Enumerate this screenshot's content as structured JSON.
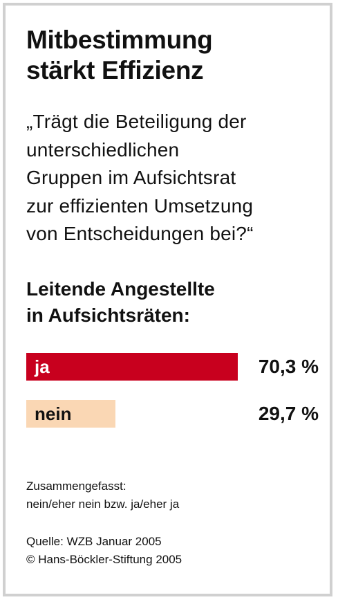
{
  "title_line1": "Mitbestimmung",
  "title_line2": "stärkt Effizienz",
  "question_lines": [
    "„Trägt die Beteiligung der",
    "unterschiedlichen",
    "Gruppen im Aufsichtsrat",
    "zur effizienten Umsetzung",
    "von Entscheidungen bei?“"
  ],
  "subtitle_line1": "Leitende Angestellte",
  "subtitle_line2": "in Aufsichtsräten:",
  "note_line1": "Zusammengefasst:",
  "note_line2": "nein/eher nein bzw. ja/eher ja",
  "source_line1": "Quelle: WZB Januar 2005",
  "source_line2": "© Hans-Böckler-Stiftung 2005",
  "chart_data": {
    "type": "bar",
    "orientation": "horizontal",
    "categories": [
      "ja",
      "nein"
    ],
    "values": [
      70.3,
      29.7
    ],
    "value_labels": [
      "70,3 %",
      "29,7 %"
    ],
    "unit": "%",
    "title": "Leitende Angestellte in Aufsichtsräten:",
    "colors": [
      "#c8001e",
      "#fad7b4"
    ],
    "label_colors": [
      "#ffffff",
      "#111111"
    ],
    "xlim": [
      0,
      70.3
    ],
    "grid": false,
    "legend": "none"
  }
}
